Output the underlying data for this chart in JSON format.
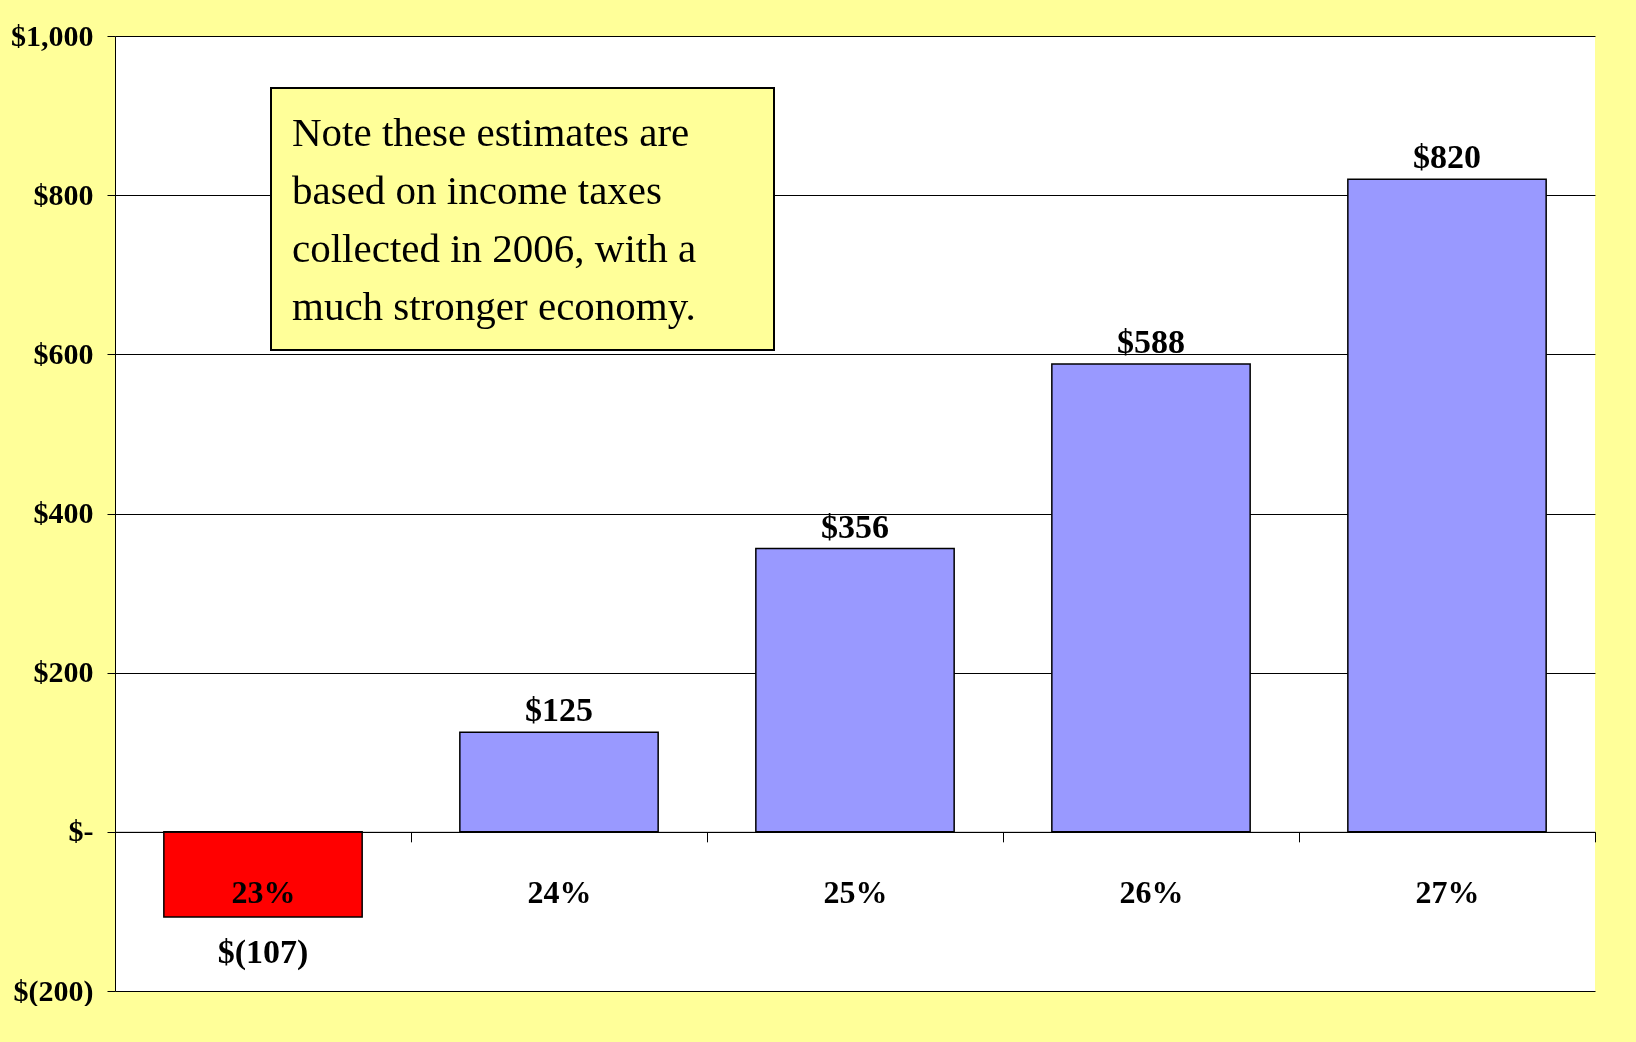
{
  "chart_data": {
    "type": "bar",
    "categories": [
      "23%",
      "24%",
      "25%",
      "26%",
      "27%"
    ],
    "values": [
      -107,
      125,
      356,
      588,
      820
    ],
    "colors": [
      "#ff0000",
      "#9999ff",
      "#9999ff",
      "#9999ff",
      "#9999ff"
    ],
    "value_labels": [
      "$(107)",
      "$125",
      "$356",
      "$588",
      "$820"
    ],
    "ylim": [
      -200,
      1000
    ],
    "yticks": [
      {
        "value": -200,
        "label": "$(200)"
      },
      {
        "value": 0,
        "label": "$-"
      },
      {
        "value": 200,
        "label": "$200"
      },
      {
        "value": 400,
        "label": "$400"
      },
      {
        "value": 600,
        "label": "$600"
      },
      {
        "value": 800,
        "label": "$800"
      },
      {
        "value": 1000,
        "label": "$1,000"
      }
    ],
    "grid": "y",
    "annotations": [
      "Note these estimates are based on income taxes collected in 2006, with a much stronger economy."
    ]
  }
}
